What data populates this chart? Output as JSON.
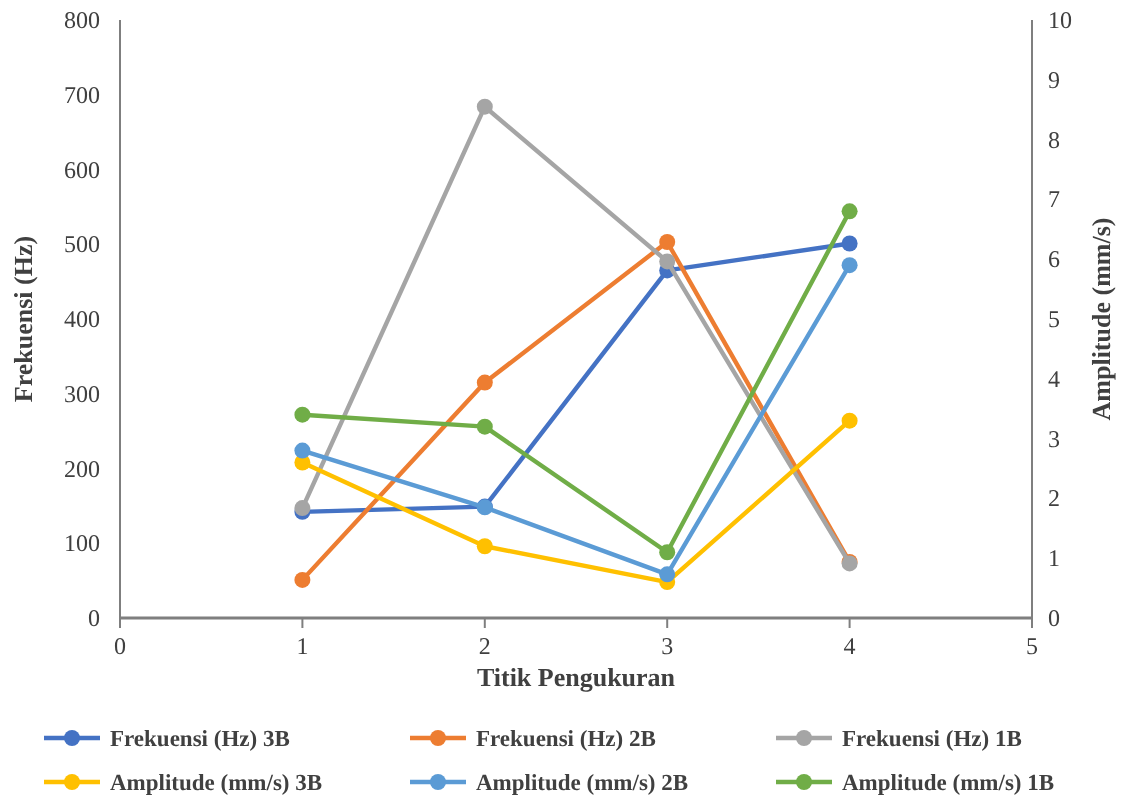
{
  "chart_data": {
    "type": "line",
    "xlabel": "Titik Pengukuran",
    "ylabel": "Frekuensi (Hz)",
    "y2label": "Amplitude (mm/s)",
    "x": [
      1,
      2,
      3,
      4
    ],
    "xlim": [
      0,
      5
    ],
    "xticks": [
      0,
      1,
      2,
      3,
      4,
      5
    ],
    "ylim": [
      0,
      800
    ],
    "yticks": [
      0,
      100,
      200,
      300,
      400,
      500,
      600,
      700,
      800
    ],
    "y2lim": [
      0,
      10
    ],
    "y2ticks": [
      0,
      1,
      2,
      3,
      4,
      5,
      6,
      7,
      8,
      9,
      10
    ],
    "marker": "circle",
    "legend": "bottom",
    "grid": false,
    "series": [
      {
        "name": "Frekuensi (Hz) 3B",
        "color": "#4472c4",
        "values": [
          142,
          149,
          465,
          501
        ]
      },
      {
        "name": "Frekuensi (Hz) 2B",
        "color": "#ed7d31",
        "values": [
          51,
          315,
          503,
          75
        ]
      },
      {
        "name": "Frekuensi (Hz) 1B",
        "color": "#a5a5a5",
        "values": [
          147,
          684,
          477,
          73
        ]
      },
      {
        "name": "Amplitude (mm/s) 3B",
        "color": "#ffc000",
        "axis": "y2",
        "values": [
          2.6,
          1.2,
          0.6,
          3.3
        ]
      },
      {
        "name": "Amplitude (mm/s) 2B",
        "color": "#5b9bd5",
        "axis": "y2",
        "values": [
          2.8,
          1.85,
          0.73,
          5.9
        ]
      },
      {
        "name": "Amplitude (mm/s) 1B",
        "color": "#70ad47",
        "axis": "y2",
        "values": [
          3.4,
          3.2,
          1.1,
          6.8
        ]
      }
    ]
  }
}
